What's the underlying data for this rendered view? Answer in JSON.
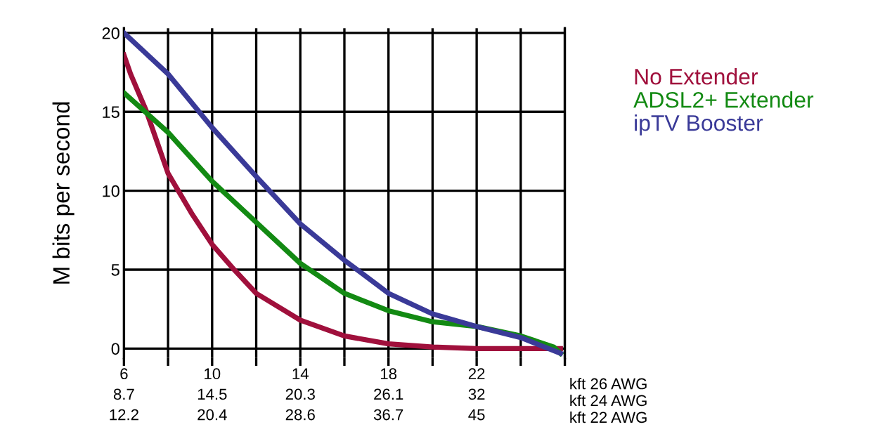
{
  "chart_data": {
    "type": "line",
    "ylabel": "M bits per second",
    "xlabel": "kft 26 AWG\nkft 24 AWG\nkft 22 AWG",
    "xlim": [
      6,
      26
    ],
    "ylim": [
      -0.6,
      20.3
    ],
    "xticks": [
      6,
      {
        "value": 8,
        "label": null
      },
      10,
      {
        "value": 12,
        "label": null
      },
      14,
      {
        "value": 16,
        "label": null
      },
      18,
      {
        "value": 20,
        "label": null
      },
      22,
      {
        "value": 24,
        "label": null
      },
      {
        "value": 26,
        "label": null
      }
    ],
    "annotations": [
      "8.7",
      "14.5",
      "20.3",
      "26.1",
      "32",
      "12.2",
      "20.4",
      "28.6",
      "36.7",
      "45"
    ],
    "yticks": [
      0,
      5,
      10,
      15,
      20
    ],
    "grid": true,
    "legend": "right",
    "marker": "none",
    "line_style": "solid",
    "series": [
      {
        "name": "No Extender",
        "color": "#a0103c",
        "x": [
          6,
          6.3,
          7,
          8,
          9.1,
          10,
          11,
          12,
          14,
          16,
          18,
          20,
          22,
          24,
          25.8
        ],
        "values": [
          18.6,
          17.4,
          15.1,
          11.1,
          8.5,
          6.6,
          5.0,
          3.5,
          1.8,
          0.8,
          0.3,
          0.1,
          0,
          0,
          0
        ]
      },
      {
        "name": "ADSL2+ Extender",
        "color": "#138a13",
        "x": [
          6,
          8,
          10,
          12,
          14,
          16,
          18,
          20,
          22,
          24,
          25.5,
          25.8
        ],
        "values": [
          16.2,
          13.7,
          10.6,
          8.0,
          5.4,
          3.5,
          2.4,
          1.7,
          1.4,
          0.8,
          0.1,
          -0.3
        ]
      },
      {
        "name": "ipTV Booster",
        "color": "#3a3a98",
        "x": [
          6,
          8,
          10,
          12,
          14,
          16,
          18,
          20,
          22,
          24,
          25.8
        ],
        "values": [
          20,
          17.4,
          14.0,
          10.9,
          7.9,
          5.6,
          3.5,
          2.2,
          1.4,
          0.7,
          -0.3
        ]
      }
    ]
  }
}
